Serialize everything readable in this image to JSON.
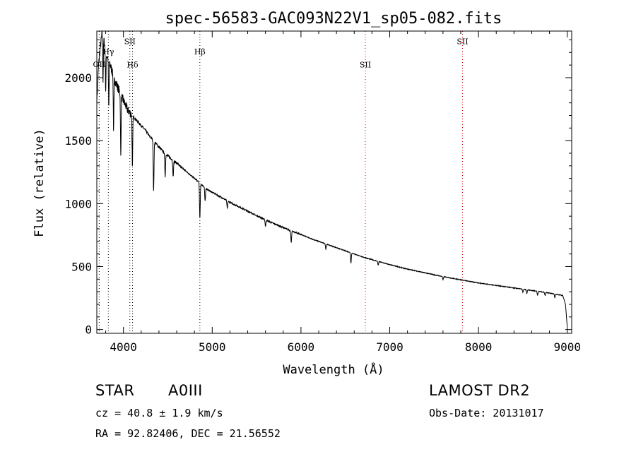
{
  "chart_data": {
    "type": "line",
    "title": "spec-56583-GAC093N22V1_sp05-082.fits",
    "xlabel": "Wavelength (Å)",
    "ylabel": "Flux (relative)",
    "xlim": [
      3700,
      9050
    ],
    "ylim": [
      -30,
      2370
    ],
    "xticks": [
      4000,
      5000,
      6000,
      7000,
      8000,
      9000
    ],
    "yticks": [
      0,
      500,
      1000,
      1500,
      2000
    ],
    "grid": false,
    "series": [
      {
        "color": "#000000",
        "x": [
          3700,
          3720,
          3740,
          3760,
          3780,
          3800,
          3830,
          3860,
          3890,
          3920,
          3950,
          3980,
          4010,
          4050,
          4100,
          4150,
          4200,
          4250,
          4300,
          4350,
          4400,
          4450,
          4500,
          4550,
          4600,
          4650,
          4700,
          4750,
          4800,
          4850,
          4880,
          4900,
          4950,
          5000,
          5100,
          5200,
          5300,
          5400,
          5500,
          5600,
          5700,
          5800,
          5900,
          6000,
          6100,
          6200,
          6300,
          6400,
          6500,
          6600,
          6700,
          6800,
          6900,
          7000,
          7200,
          7400,
          7600,
          7800,
          8000,
          8200,
          8400,
          8600,
          8800,
          8950,
          8980,
          9000
        ],
        "y": [
          1820,
          2100,
          2250,
          2350,
          2300,
          2200,
          2150,
          2080,
          2000,
          1950,
          1900,
          1850,
          1800,
          1740,
          1700,
          1660,
          1620,
          1580,
          1530,
          1490,
          1450,
          1410,
          1380,
          1350,
          1320,
          1290,
          1260,
          1230,
          1200,
          1170,
          1150,
          1140,
          1110,
          1090,
          1050,
          1010,
          975,
          940,
          905,
          870,
          840,
          810,
          780,
          755,
          725,
          700,
          675,
          650,
          625,
          600,
          575,
          555,
          535,
          515,
          480,
          450,
          420,
          395,
          370,
          350,
          330,
          310,
          290,
          270,
          200,
          20
        ],
        "absorption": [
          {
            "x": 3770,
            "depth": 350
          },
          {
            "x": 3800,
            "depth": 300
          },
          {
            "x": 3835,
            "depth": 380
          },
          {
            "x": 3889,
            "depth": 420
          },
          {
            "x": 3970,
            "depth": 500
          },
          {
            "x": 4101,
            "depth": 420
          },
          {
            "x": 4340,
            "depth": 400
          },
          {
            "x": 4470,
            "depth": 180
          },
          {
            "x": 4560,
            "depth": 130
          },
          {
            "x": 4861,
            "depth": 280
          },
          {
            "x": 4920,
            "depth": 110
          },
          {
            "x": 5170,
            "depth": 60
          },
          {
            "x": 5600,
            "depth": 50
          },
          {
            "x": 5890,
            "depth": 90
          },
          {
            "x": 6280,
            "depth": 40
          },
          {
            "x": 6563,
            "depth": 80
          },
          {
            "x": 6870,
            "depth": 30
          },
          {
            "x": 7600,
            "depth": 25
          },
          {
            "x": 8500,
            "depth": 25
          },
          {
            "x": 8545,
            "depth": 30
          },
          {
            "x": 8665,
            "depth": 30
          },
          {
            "x": 8750,
            "depth": 25
          },
          {
            "x": 8860,
            "depth": 30
          }
        ]
      }
    ],
    "lines": [
      {
        "label": "OII",
        "x": 3727,
        "color": "#000000",
        "label_y": 2085
      },
      {
        "label": "Hγ",
        "x": 3830,
        "color": "#000000",
        "label_y": 2185
      },
      {
        "label": "SII",
        "x": 4072,
        "color": "#000000",
        "label_y": 2265
      },
      {
        "label": "Hδ",
        "x": 4102,
        "color": "#000000",
        "label_y": 2080
      },
      {
        "label": "Hβ",
        "x": 4861,
        "color": "#000000",
        "label_y": 2185
      },
      {
        "label": "SII",
        "x": 6725,
        "color": "#cc0000",
        "label_y": 2080
      },
      {
        "label": "SII",
        "x": 7820,
        "color": "#cc0000",
        "label_y": 2265
      }
    ]
  },
  "info": {
    "class_label": "STAR",
    "subclass": "A0III",
    "survey": "LAMOST DR2",
    "cz": "cz = 40.8 ± 1.9 km/s",
    "obs_date": "Obs-Date: 20131017",
    "radec": "RA =  92.82406, DEC =  21.56552"
  }
}
